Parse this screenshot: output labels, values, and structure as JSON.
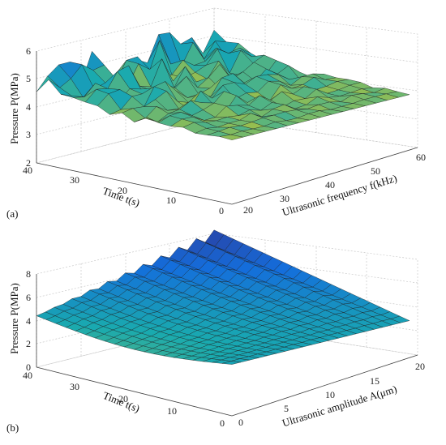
{
  "chart_data": [
    {
      "panel_label": "(a)",
      "type": "surface3d",
      "zlabel": "Pressure P(MPa)",
      "ylabel": "Time t(s)",
      "xlabel": "Ultrasonic frequency f(kHz)",
      "xlim": [
        20,
        60
      ],
      "ylim": [
        0,
        40
      ],
      "zlim": [
        2,
        6
      ],
      "x_ticks": [
        "20",
        "30",
        "40",
        "50",
        "60"
      ],
      "y_ticks": [
        "0",
        "10",
        "20",
        "30",
        "40"
      ],
      "z_ticks": [
        "2",
        "3",
        "4",
        "5",
        "6"
      ],
      "base_pressure": 4.6,
      "peak_pressure": 6.0,
      "grid": true,
      "colormap": "parula"
    },
    {
      "panel_label": "(b)",
      "type": "surface3d",
      "zlabel": "Pressure P(MPa)",
      "ylabel": "Time t(s)",
      "xlabel": "Ultrasonic amplitude A(μm)",
      "xlim": [
        0,
        20
      ],
      "ylim": [
        0,
        40
      ],
      "zlim": [
        0,
        8
      ],
      "x_ticks": [
        "0",
        "5",
        "10",
        "15",
        "20"
      ],
      "y_ticks": [
        "0",
        "10",
        "20",
        "30",
        "40"
      ],
      "z_ticks": [
        "0",
        "2",
        "4",
        "6",
        "8"
      ],
      "base_pressure": 4.4,
      "peak_pressure": 8.0,
      "grid": true,
      "colormap": "parula"
    }
  ]
}
